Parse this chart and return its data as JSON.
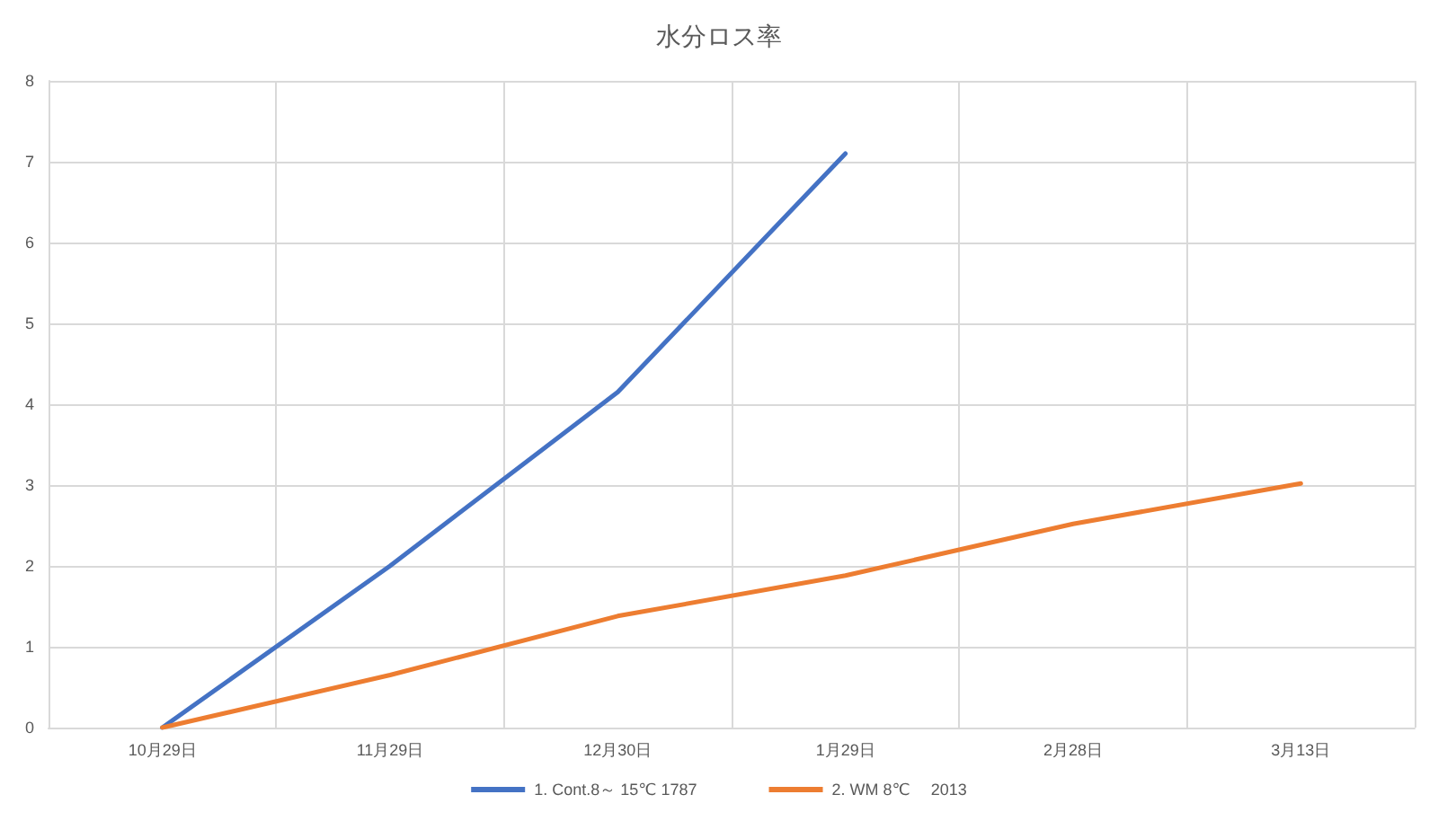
{
  "chart_data": {
    "type": "line",
    "title": "水分ロス率",
    "categories": [
      "10月29日",
      "11月29日",
      "12月30日",
      "1月29日",
      "2月28日",
      "3月13日"
    ],
    "series": [
      {
        "name": "1. Cont.8～ 15℃ 1787",
        "color": "#4472c4",
        "values": [
          0,
          2.0,
          4.15,
          7.1,
          null,
          null
        ]
      },
      {
        "name": "2. WM 8℃　 2013",
        "color": "#ed7d31",
        "values": [
          0,
          0.65,
          1.38,
          1.88,
          2.52,
          3.02
        ]
      }
    ],
    "ylim": [
      0,
      8
    ],
    "yticks": [
      0,
      1,
      2,
      3,
      4,
      5,
      6,
      7,
      8
    ],
    "grid": true,
    "legend": "bottom",
    "marker": "none",
    "line_style": "solid"
  }
}
